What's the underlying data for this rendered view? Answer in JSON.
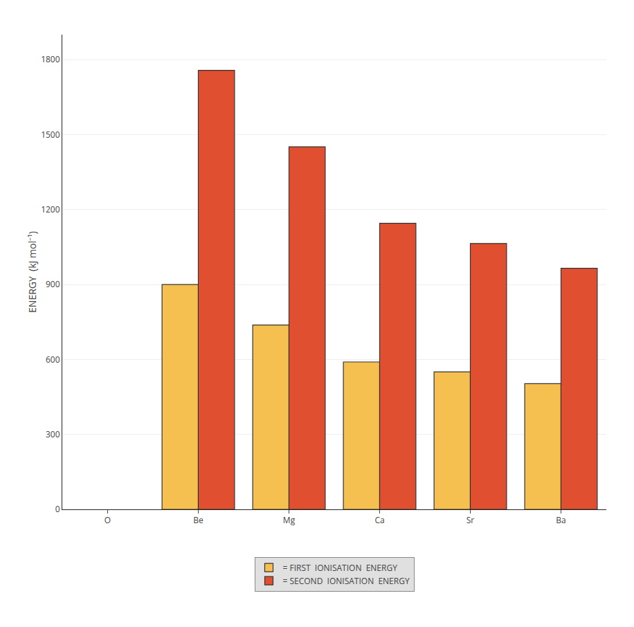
{
  "chart_data": {
    "type": "bar",
    "categories": [
      "O",
      "Be",
      "Mg",
      "Ca",
      "Sr",
      "Ba"
    ],
    "series": [
      {
        "name": "= FIRST  IONISATION  ENERGY",
        "color": "#F5C050",
        "values": [
          null,
          900,
          738,
          590,
          550,
          503
        ]
      },
      {
        "name": "= SECOND  IONISATION  ENERGY",
        "color": "#E05030",
        "values": [
          null,
          1757,
          1451,
          1145,
          1064,
          965
        ]
      }
    ],
    "ylabel": "ENERGY  (kJ mol⁻¹)",
    "ylim": [
      0,
      1900
    ],
    "yticks": [
      0,
      300,
      600,
      900,
      1200,
      1500,
      1800
    ],
    "grid": true,
    "legend": "bottom"
  }
}
